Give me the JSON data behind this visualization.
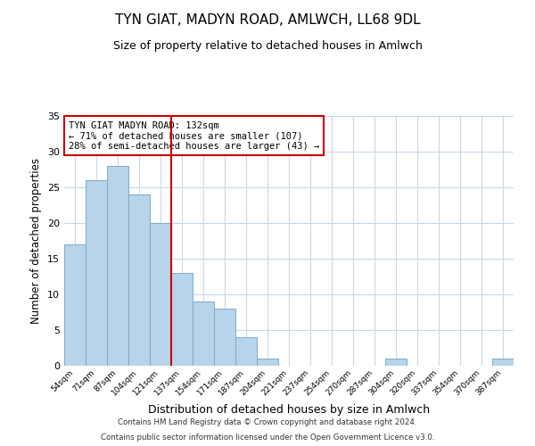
{
  "title": "TYN GIAT, MADYN ROAD, AMLWCH, LL68 9DL",
  "subtitle": "Size of property relative to detached houses in Amlwch",
  "xlabel": "Distribution of detached houses by size in Amlwch",
  "ylabel": "Number of detached properties",
  "bar_color": "#b8d4ea",
  "bar_edge_color": "#7aaaca",
  "bin_labels": [
    "54sqm",
    "71sqm",
    "87sqm",
    "104sqm",
    "121sqm",
    "137sqm",
    "154sqm",
    "171sqm",
    "187sqm",
    "204sqm",
    "221sqm",
    "237sqm",
    "254sqm",
    "270sqm",
    "287sqm",
    "304sqm",
    "320sqm",
    "337sqm",
    "354sqm",
    "370sqm",
    "387sqm"
  ],
  "bar_heights": [
    17,
    26,
    28,
    24,
    20,
    13,
    9,
    8,
    4,
    1,
    0,
    0,
    0,
    0,
    0,
    1,
    0,
    0,
    0,
    0,
    1
  ],
  "ylim": [
    0,
    35
  ],
  "yticks": [
    0,
    5,
    10,
    15,
    20,
    25,
    30,
    35
  ],
  "vline_pos": 4.5,
  "vline_color": "#cc0000",
  "annotation_title": "TYN GIAT MADYN ROAD: 132sqm",
  "annotation_line1": "← 71% of detached houses are smaller (107)",
  "annotation_line2": "28% of semi-detached houses are larger (43) →",
  "annotation_box_color": "#ffffff",
  "annotation_box_edge_color": "#cc0000",
  "footer1": "Contains HM Land Registry data © Crown copyright and database right 2024.",
  "footer2": "Contains public sector information licensed under the Open Government Licence v3.0.",
  "background_color": "#ffffff",
  "grid_color": "#c8d8e8",
  "fig_bg_color": "#ffffff",
  "title_fontsize": 11,
  "subtitle_fontsize": 9
}
